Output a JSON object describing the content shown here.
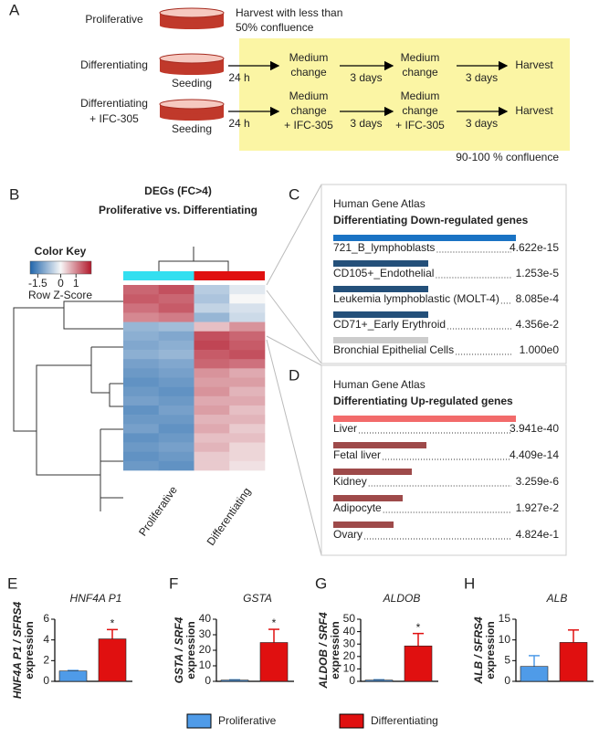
{
  "panel_a": {
    "label": "A",
    "rows": [
      {
        "label": [
          "Proliferative"
        ],
        "note": [
          "Harvest with less than",
          "50% confluence"
        ]
      },
      {
        "label": [
          "Differentiating"
        ],
        "seeding": "Seeding",
        "steps": [
          [
            "24 h"
          ],
          [
            "Medium",
            "change"
          ],
          [
            "3 days"
          ],
          [
            "Medium",
            "change"
          ],
          [
            "3 days"
          ],
          [
            "Harvest"
          ]
        ]
      },
      {
        "label": [
          "Differentiating",
          "+ IFC-305"
        ],
        "seeding": "Seeding",
        "steps": [
          [
            "24 h"
          ],
          [
            "Medium",
            "change",
            "+ IFC-305"
          ],
          [
            "3 days"
          ],
          [
            "Medium",
            "change",
            "+ IFC-305"
          ],
          [
            "3 days"
          ],
          [
            "Harvest"
          ]
        ]
      }
    ],
    "confluence": "90-100 % confluence"
  },
  "panel_b": {
    "label": "B",
    "title": [
      "DEGs (FC>4)",
      "Proliferative vs. Differentiating"
    ],
    "color_key": {
      "title": "Color Key",
      "label": "Row Z-Score",
      "lim": [
        -2,
        2
      ],
      "ticks": [
        -1.5,
        0,
        1
      ],
      "colors": [
        "#2166ac",
        "#f7f7f7",
        "#b2182b"
      ]
    },
    "column_groups": [
      {
        "name": "Proliferative",
        "color": "#33dff0"
      },
      {
        "name": "Differentiating",
        "color": "#e01010"
      }
    ],
    "values": [
      [
        1.3,
        1.5,
        -0.6,
        -0.2
      ],
      [
        1.4,
        1.3,
        -0.7,
        0
      ],
      [
        1.2,
        1.4,
        -0.5,
        -0.3
      ],
      [
        1.0,
        1.1,
        -0.9,
        -0.4
      ],
      [
        -0.9,
        -0.8,
        0.5,
        0.9
      ],
      [
        -1.0,
        -1.1,
        1.5,
        1.3
      ],
      [
        -1.1,
        -1.0,
        1.6,
        1.4
      ],
      [
        -1.0,
        -0.9,
        1.4,
        1.5
      ],
      [
        -1.2,
        -1.1,
        1.3,
        1.2
      ],
      [
        -1.3,
        -1.2,
        0.9,
        0.7
      ],
      [
        -1.4,
        -1.3,
        0.8,
        0.8
      ],
      [
        -1.3,
        -1.4,
        0.9,
        0.6
      ],
      [
        -1.2,
        -1.3,
        0.7,
        0.7
      ],
      [
        -1.4,
        -1.2,
        0.8,
        0.5
      ],
      [
        -1.3,
        -1.3,
        0.6,
        0.6
      ],
      [
        -1.2,
        -1.4,
        0.7,
        0.4
      ],
      [
        -1.4,
        -1.3,
        0.5,
        0.5
      ],
      [
        -1.3,
        -1.2,
        0.6,
        0.3
      ],
      [
        -1.4,
        -1.3,
        0.4,
        0.3
      ],
      [
        -1.3,
        -1.4,
        0.4,
        0.2
      ]
    ]
  },
  "enrichment": [
    {
      "label": "C",
      "title": "Human Gene Atlas",
      "subtitle": "Differentiating Down-regulated genes",
      "color": "#1f5c99",
      "terms": [
        {
          "name": "721_B_lymphoblasts",
          "p": "4.622e-15",
          "bar": 100,
          "color": "#1a73c4"
        },
        {
          "name": "CD105+_Endothelial",
          "p": "1.253e-5",
          "bar": 52,
          "color": "#24507a"
        },
        {
          "name": "Leukemia lymphoblastic (MOLT-4)",
          "p": "8.085e-4",
          "bar": 52,
          "color": "#24507a"
        },
        {
          "name": "CD71+_Early Erythroid",
          "p": "4.356e-2",
          "bar": 52,
          "color": "#24507a"
        },
        {
          "name": "Bronchial Epithelial Cells",
          "p": "1.000e0",
          "bar": 52,
          "color": "#cccccc"
        }
      ]
    },
    {
      "label": "D",
      "title": "Human Gene Atlas",
      "subtitle": "Differentiating Up-regulated genes",
      "color": "#d9383a",
      "terms": [
        {
          "name": "Liver",
          "p": "3.941e-40",
          "bar": 100,
          "color": "#f26b6b"
        },
        {
          "name": "Fetal liver",
          "p": "4.409e-14",
          "bar": 51,
          "color": "#9e4a4a"
        },
        {
          "name": "Kidney",
          "p": "3.259e-6",
          "bar": 43,
          "color": "#9e4a4a"
        },
        {
          "name": "Adipocyte",
          "p": "1.927e-2",
          "bar": 38,
          "color": "#9e4a4a"
        },
        {
          "name": "Ovary",
          "p": "4.824e-1",
          "bar": 33,
          "color": "#9e4a4a"
        }
      ]
    }
  ],
  "chart_data": [
    {
      "type": "bar",
      "label": "E",
      "title": "HNF4A P1",
      "ylabel": [
        "HNF4A P1 / SFRS4",
        "expression"
      ],
      "ylim": [
        0,
        6
      ],
      "yticks": [
        0,
        2,
        4,
        6
      ],
      "annotation": "*",
      "series": [
        {
          "name": "Proliferative",
          "color": "#4f9be8",
          "values": [
            1.0
          ],
          "errors": [
            0.05
          ]
        },
        {
          "name": "Differentiating",
          "color": "#e01010",
          "values": [
            4.1
          ],
          "errors": [
            0.9
          ]
        }
      ]
    },
    {
      "type": "bar",
      "label": "F",
      "title": "GSTA",
      "ylabel": [
        "GSTA / SRF4",
        "expression"
      ],
      "ylim": [
        0,
        40
      ],
      "yticks": [
        0,
        10,
        20,
        30,
        40
      ],
      "annotation": "*",
      "series": [
        {
          "name": "Proliferative",
          "color": "#4f9be8",
          "values": [
            0.8
          ],
          "errors": [
            0.2
          ]
        },
        {
          "name": "Differentiating",
          "color": "#e01010",
          "values": [
            25
          ],
          "errors": [
            8.5
          ]
        }
      ]
    },
    {
      "type": "bar",
      "label": "G",
      "title": "ALDOB",
      "ylabel": [
        "ALDOB / SRF4",
        "expression"
      ],
      "ylim": [
        0,
        50
      ],
      "yticks": [
        0,
        10,
        20,
        30,
        40,
        50
      ],
      "annotation": "*",
      "series": [
        {
          "name": "Proliferative",
          "color": "#4f9be8",
          "values": [
            1.0
          ],
          "errors": [
            0.3
          ]
        },
        {
          "name": "Differentiating",
          "color": "#e01010",
          "values": [
            28.5
          ],
          "errors": [
            10
          ]
        }
      ]
    },
    {
      "type": "bar",
      "label": "H",
      "title": "ALB",
      "ylabel": [
        "ALB / SFRS4",
        "expression"
      ],
      "ylim": [
        0,
        15
      ],
      "yticks": [
        0,
        5,
        10,
        15
      ],
      "series": [
        {
          "name": "Proliferative",
          "color": "#4f9be8",
          "values": [
            3.6
          ],
          "errors": [
            2.6
          ]
        },
        {
          "name": "Differentiating",
          "color": "#e01010",
          "values": [
            9.4
          ],
          "errors": [
            3.0
          ]
        }
      ]
    }
  ]
}
